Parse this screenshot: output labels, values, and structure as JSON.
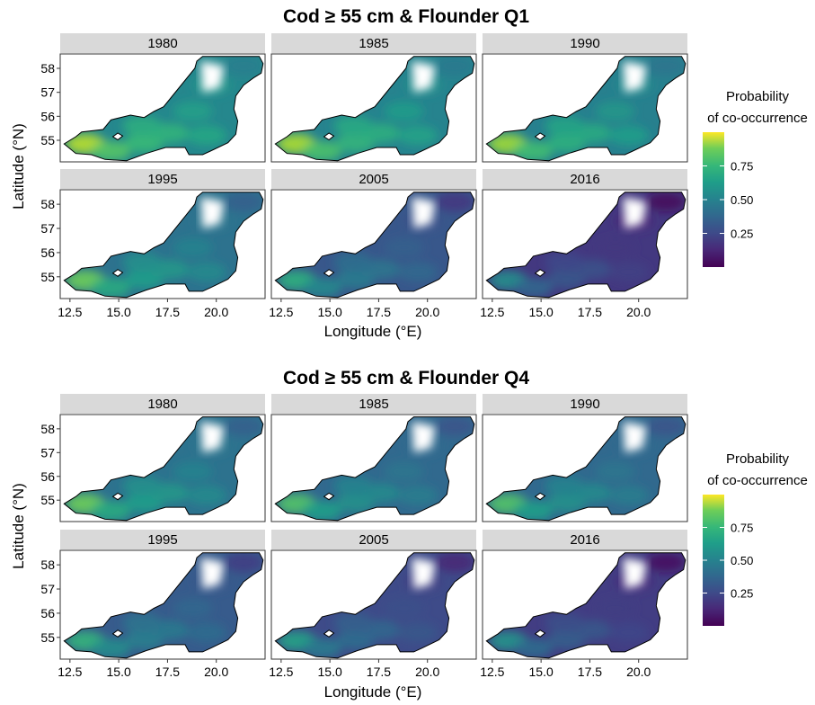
{
  "chart_data": [
    {
      "type": "heatmap",
      "title": "Cod ≥ 55 cm & Flounder Q1",
      "xlabel": "Longitude (°E)",
      "ylabel": "Latitude (°N)",
      "x_ticks": [
        "12.5",
        "15.0",
        "17.5",
        "20.0"
      ],
      "y_ticks": [
        "55",
        "56",
        "57",
        "58"
      ],
      "xlim": [
        12,
        22.5
      ],
      "ylim": [
        54.1,
        58.6
      ],
      "legend": {
        "title_line1": "Probability",
        "title_line2": "of co-occurrence",
        "ticks": [
          "0.75",
          "0.50",
          "0.25"
        ],
        "tick_values": [
          0.75,
          0.5,
          0.25
        ],
        "range": [
          0,
          1
        ],
        "palette": "viridis",
        "position": "right"
      },
      "facets": [
        {
          "year": "1980",
          "mean_probability": 0.62
        },
        {
          "year": "1985",
          "mean_probability": 0.6
        },
        {
          "year": "1990",
          "mean_probability": 0.58
        },
        {
          "year": "1995",
          "mean_probability": 0.5
        },
        {
          "year": "2005",
          "mean_probability": 0.36
        },
        {
          "year": "2016",
          "mean_probability": 0.22
        }
      ]
    },
    {
      "type": "heatmap",
      "title": "Cod ≥ 55 cm & Flounder Q4",
      "xlabel": "Longitude (°E)",
      "ylabel": "Latitude (°N)",
      "x_ticks": [
        "12.5",
        "15.0",
        "17.5",
        "20.0"
      ],
      "y_ticks": [
        "55",
        "56",
        "57",
        "58"
      ],
      "xlim": [
        12,
        22.5
      ],
      "ylim": [
        54.1,
        58.6
      ],
      "legend": {
        "title_line1": "Probability",
        "title_line2": "of co-occurrence",
        "ticks": [
          "0.75",
          "0.50",
          "0.25"
        ],
        "tick_values": [
          0.75,
          0.5,
          0.25
        ],
        "range": [
          0,
          1
        ],
        "palette": "viridis",
        "position": "right"
      },
      "facets": [
        {
          "year": "1980",
          "mean_probability": 0.5
        },
        {
          "year": "1985",
          "mean_probability": 0.45
        },
        {
          "year": "1990",
          "mean_probability": 0.45
        },
        {
          "year": "1995",
          "mean_probability": 0.38
        },
        {
          "year": "2005",
          "mean_probability": 0.3
        },
        {
          "year": "2016",
          "mean_probability": 0.24
        }
      ]
    }
  ],
  "colors": {
    "strip": "#d9d9d9",
    "map_outline": "#000000",
    "viridis_low": "#440154",
    "viridis_mid": "#21908c",
    "viridis_high": "#fde725"
  }
}
